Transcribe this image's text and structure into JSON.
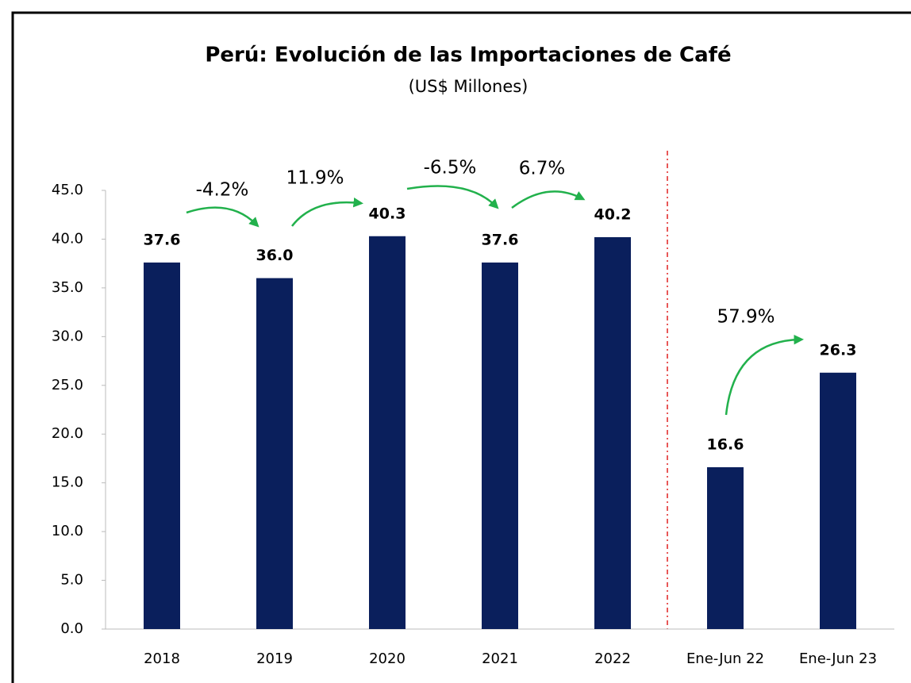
{
  "chart_data": {
    "type": "bar",
    "title": "Perú: Evolución de las Importaciones de Café",
    "subtitle": "(US$ Millones)",
    "categories": [
      "2018",
      "2019",
      "2020",
      "2021",
      "2022",
      "Ene-Jun 22",
      "Ene-Jun 23"
    ],
    "values": [
      37.6,
      36.0,
      40.3,
      37.6,
      40.2,
      16.6,
      26.3
    ],
    "value_labels": [
      "37.6",
      "36.0",
      "40.3",
      "37.6",
      "40.2",
      "16.6",
      "26.3"
    ],
    "color": "#0a1f5c",
    "ylim": [
      0,
      45
    ],
    "yticks": [
      {
        "value": 0,
        "label": "0.0"
      },
      {
        "value": 5,
        "label": "5.0"
      },
      {
        "value": 10,
        "label": "10.0"
      },
      {
        "value": 15,
        "label": "15.0"
      },
      {
        "value": 20,
        "label": "20.0"
      },
      {
        "value": 25,
        "label": "25.0"
      },
      {
        "value": 30,
        "label": "30.0"
      },
      {
        "value": 35,
        "label": "35.0"
      },
      {
        "value": 40,
        "label": "40.0"
      },
      {
        "value": 45,
        "label": "45.0"
      }
    ],
    "grid": false,
    "annotations": [
      "-4.2%",
      "11.9%",
      "-6.5%",
      "6.7%",
      "57.9%"
    ]
  }
}
